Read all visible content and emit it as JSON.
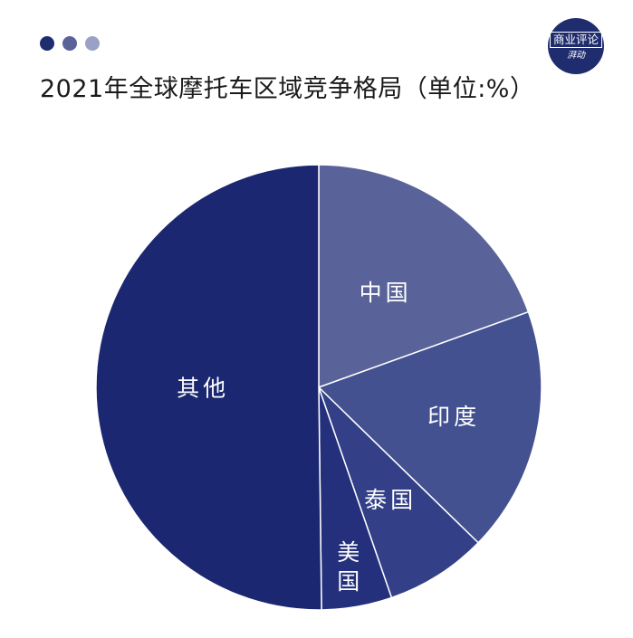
{
  "header": {
    "dot_colors": [
      "#1f2d6e",
      "#5a6399",
      "#9aa1c4"
    ],
    "title": "2021年全球摩托车区域竞争格局（单位:%）"
  },
  "logo": {
    "line1": "商业评论",
    "line2": "湃动"
  },
  "chart_data": {
    "type": "pie",
    "title": "2021年全球摩托车区域竞争格局（单位:%）",
    "unit": "%",
    "slices": [
      {
        "label": "中国",
        "value": 19.5,
        "color": "#5a6399"
      },
      {
        "label": "印度",
        "value": 17.8,
        "color": "#445191"
      },
      {
        "label": "泰国",
        "value": 7.4,
        "color": "#334088"
      },
      {
        "label": "美国",
        "value": 5.1,
        "color": "#24307c"
      },
      {
        "label": "其他",
        "value": 50.2,
        "color": "#1b2770"
      }
    ],
    "start_angle": "top (12 o'clock), clockwise",
    "label_lines": [
      [
        "中国"
      ],
      [
        "印度"
      ],
      [
        "泰国"
      ],
      [
        "美",
        "国"
      ],
      [
        "其他"
      ]
    ]
  }
}
